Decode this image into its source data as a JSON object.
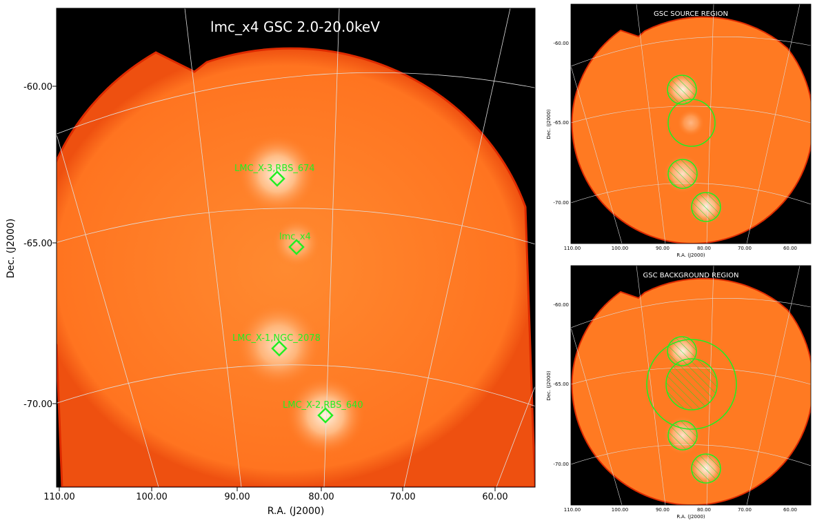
{
  "colors": {
    "background": "#000000",
    "field": "#ff7a22",
    "region": "#22dd22",
    "grid": "#dddddd"
  },
  "main": {
    "title": "lmc_x4 GSC 2.0-20.0keV",
    "xlabel": "R.A. (J2000)",
    "ylabel": "Dec. (J2000)",
    "xticks": [
      "110.00",
      "100.00",
      "90.00",
      "80.00",
      "70.00",
      "60.00"
    ],
    "yticks": [
      "-60.00",
      "-65.00",
      "-70.00"
    ],
    "sources": [
      {
        "name": "LMC_X-3,RBS_674",
        "ra": 85.0,
        "dec": -64.1
      },
      {
        "name": "lmc_x4",
        "ra": 83.2,
        "dec": -66.4
      },
      {
        "name": "LMC_X-1,NGC_2078",
        "ra": 84.9,
        "dec": -69.7
      },
      {
        "name": "LMC_X-2,RBS_640",
        "ra": 80.1,
        "dec": -71.9
      }
    ]
  },
  "source_panel": {
    "title": "GSC SOURCE REGION",
    "xlabel": "R.A. (J2000)",
    "ylabel": "Dec. (J2000)",
    "xticks": [
      "110.00",
      "100.00",
      "90.00",
      "80.00",
      "70.00",
      "60.00"
    ],
    "yticks": [
      "-60.00",
      "-65.00",
      "-70.00"
    ]
  },
  "background_panel": {
    "title": "GSC BACKGROUND REGION",
    "xlabel": "R.A. (J2000)",
    "ylabel": "Dec. (J2000)",
    "xticks": [
      "110.00",
      "100.00",
      "90.00",
      "80.00",
      "70.00",
      "60.00"
    ],
    "yticks": [
      "-60.00",
      "-65.00",
      "-70.00"
    ]
  }
}
